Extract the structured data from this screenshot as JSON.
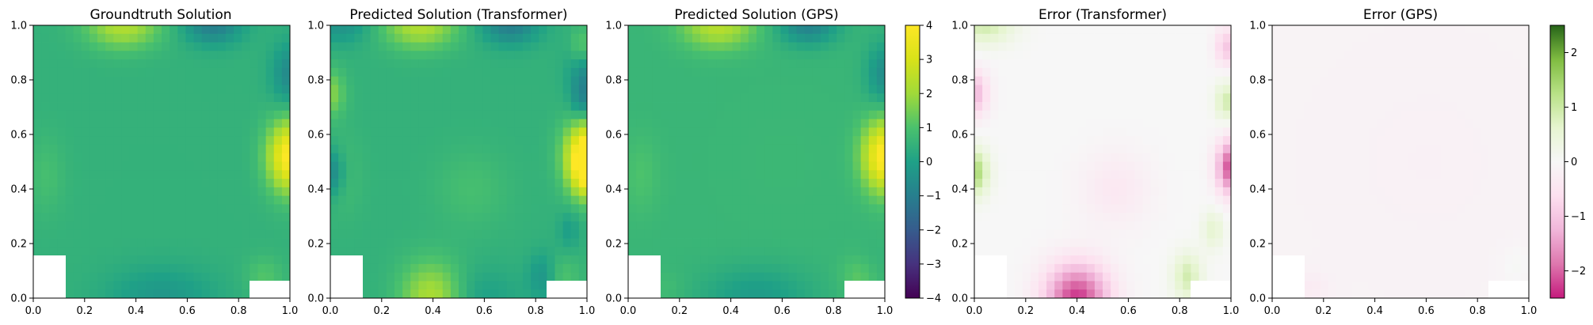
{
  "chart_data": [
    {
      "type": "heatmap",
      "field": "gt",
      "title": "Groundtruth Solution",
      "xlim": [
        0.0,
        1.0
      ],
      "ylim": [
        0.0,
        1.0
      ],
      "xticks": [
        "0.0",
        "0.2",
        "0.4",
        "0.6",
        "0.8",
        "1.0"
      ],
      "yticks": [
        "0.0",
        "0.2",
        "0.4",
        "0.6",
        "0.8",
        "1.0"
      ],
      "colormap": "viridis",
      "vmin": -4,
      "vmax": 4,
      "masked_regions": [
        {
          "x": [
            0.0,
            0.125
          ],
          "y": [
            0.0,
            0.156
          ]
        },
        {
          "x": [
            0.84,
            1.0
          ],
          "y": [
            0.0,
            0.063
          ]
        }
      ]
    },
    {
      "type": "heatmap",
      "field": "pt",
      "title": "Predicted Solution (Transformer)",
      "xlim": [
        0.0,
        1.0
      ],
      "ylim": [
        0.0,
        1.0
      ],
      "xticks": [
        "0.0",
        "0.2",
        "0.4",
        "0.6",
        "0.8",
        "1.0"
      ],
      "yticks": [
        "0.0",
        "0.2",
        "0.4",
        "0.6",
        "0.8",
        "1.0"
      ],
      "colormap": "viridis",
      "vmin": -4,
      "vmax": 4,
      "masked_regions": [
        {
          "x": [
            0.0,
            0.125
          ],
          "y": [
            0.0,
            0.156
          ]
        },
        {
          "x": [
            0.84,
            1.0
          ],
          "y": [
            0.0,
            0.063
          ]
        }
      ]
    },
    {
      "type": "heatmap",
      "field": "pg",
      "title": "Predicted Solution (GPS)",
      "xlim": [
        0.0,
        1.0
      ],
      "ylim": [
        0.0,
        1.0
      ],
      "xticks": [
        "0.0",
        "0.2",
        "0.4",
        "0.6",
        "0.8",
        "1.0"
      ],
      "yticks": [
        "0.0",
        "0.2",
        "0.4",
        "0.6",
        "0.8",
        "1.0"
      ],
      "colormap": "viridis",
      "vmin": -4,
      "vmax": 4,
      "masked_regions": [
        {
          "x": [
            0.0,
            0.125
          ],
          "y": [
            0.0,
            0.156
          ]
        },
        {
          "x": [
            0.84,
            1.0
          ],
          "y": [
            0.0,
            0.063
          ]
        }
      ]
    },
    {
      "type": "heatmap",
      "field": "et",
      "title": "Error (Transformer)",
      "xlim": [
        0.0,
        1.0
      ],
      "ylim": [
        0.0,
        1.0
      ],
      "xticks": [
        "0.0",
        "0.2",
        "0.4",
        "0.6",
        "0.8",
        "1.0"
      ],
      "yticks": [
        "0.0",
        "0.2",
        "0.4",
        "0.6",
        "0.8",
        "1.0"
      ],
      "colormap": "PiYG",
      "vmin": -2.5,
      "vmax": 2.5,
      "masked_regions": [
        {
          "x": [
            0.0,
            0.125
          ],
          "y": [
            0.0,
            0.156
          ]
        },
        {
          "x": [
            0.84,
            1.0
          ],
          "y": [
            0.0,
            0.063
          ]
        }
      ]
    },
    {
      "type": "heatmap",
      "field": "eg",
      "title": "Error (GPS)",
      "xlim": [
        0.0,
        1.0
      ],
      "ylim": [
        0.0,
        1.0
      ],
      "xticks": [
        "0.0",
        "0.2",
        "0.4",
        "0.6",
        "0.8",
        "1.0"
      ],
      "yticks": [
        "0.0",
        "0.2",
        "0.4",
        "0.6",
        "0.8",
        "1.0"
      ],
      "colormap": "PiYG",
      "vmin": -2.5,
      "vmax": 2.5,
      "masked_regions": [
        {
          "x": [
            0.0,
            0.125
          ],
          "y": [
            0.0,
            0.156
          ]
        },
        {
          "x": [
            0.84,
            1.0
          ],
          "y": [
            0.0,
            0.063
          ]
        }
      ]
    }
  ],
  "colorbars": [
    {
      "colormap": "viridis",
      "vmin": -4,
      "vmax": 4,
      "ticks": [
        {
          "value": 4,
          "label": "4"
        },
        {
          "value": 3,
          "label": "3"
        },
        {
          "value": 2,
          "label": "2"
        },
        {
          "value": 1,
          "label": "1"
        },
        {
          "value": 0,
          "label": "0"
        },
        {
          "value": -1,
          "label": "−1"
        },
        {
          "value": -2,
          "label": "−2"
        },
        {
          "value": -3,
          "label": "−3"
        },
        {
          "value": -4,
          "label": "−4"
        }
      ]
    },
    {
      "colormap": "PiYG",
      "vmin": -2.5,
      "vmax": 2.5,
      "ticks": [
        {
          "value": 2,
          "label": "2"
        },
        {
          "value": 1,
          "label": "1"
        },
        {
          "value": 0,
          "label": "0"
        },
        {
          "value": -1,
          "label": "−1"
        },
        {
          "value": -2,
          "label": "−2"
        }
      ]
    }
  ]
}
